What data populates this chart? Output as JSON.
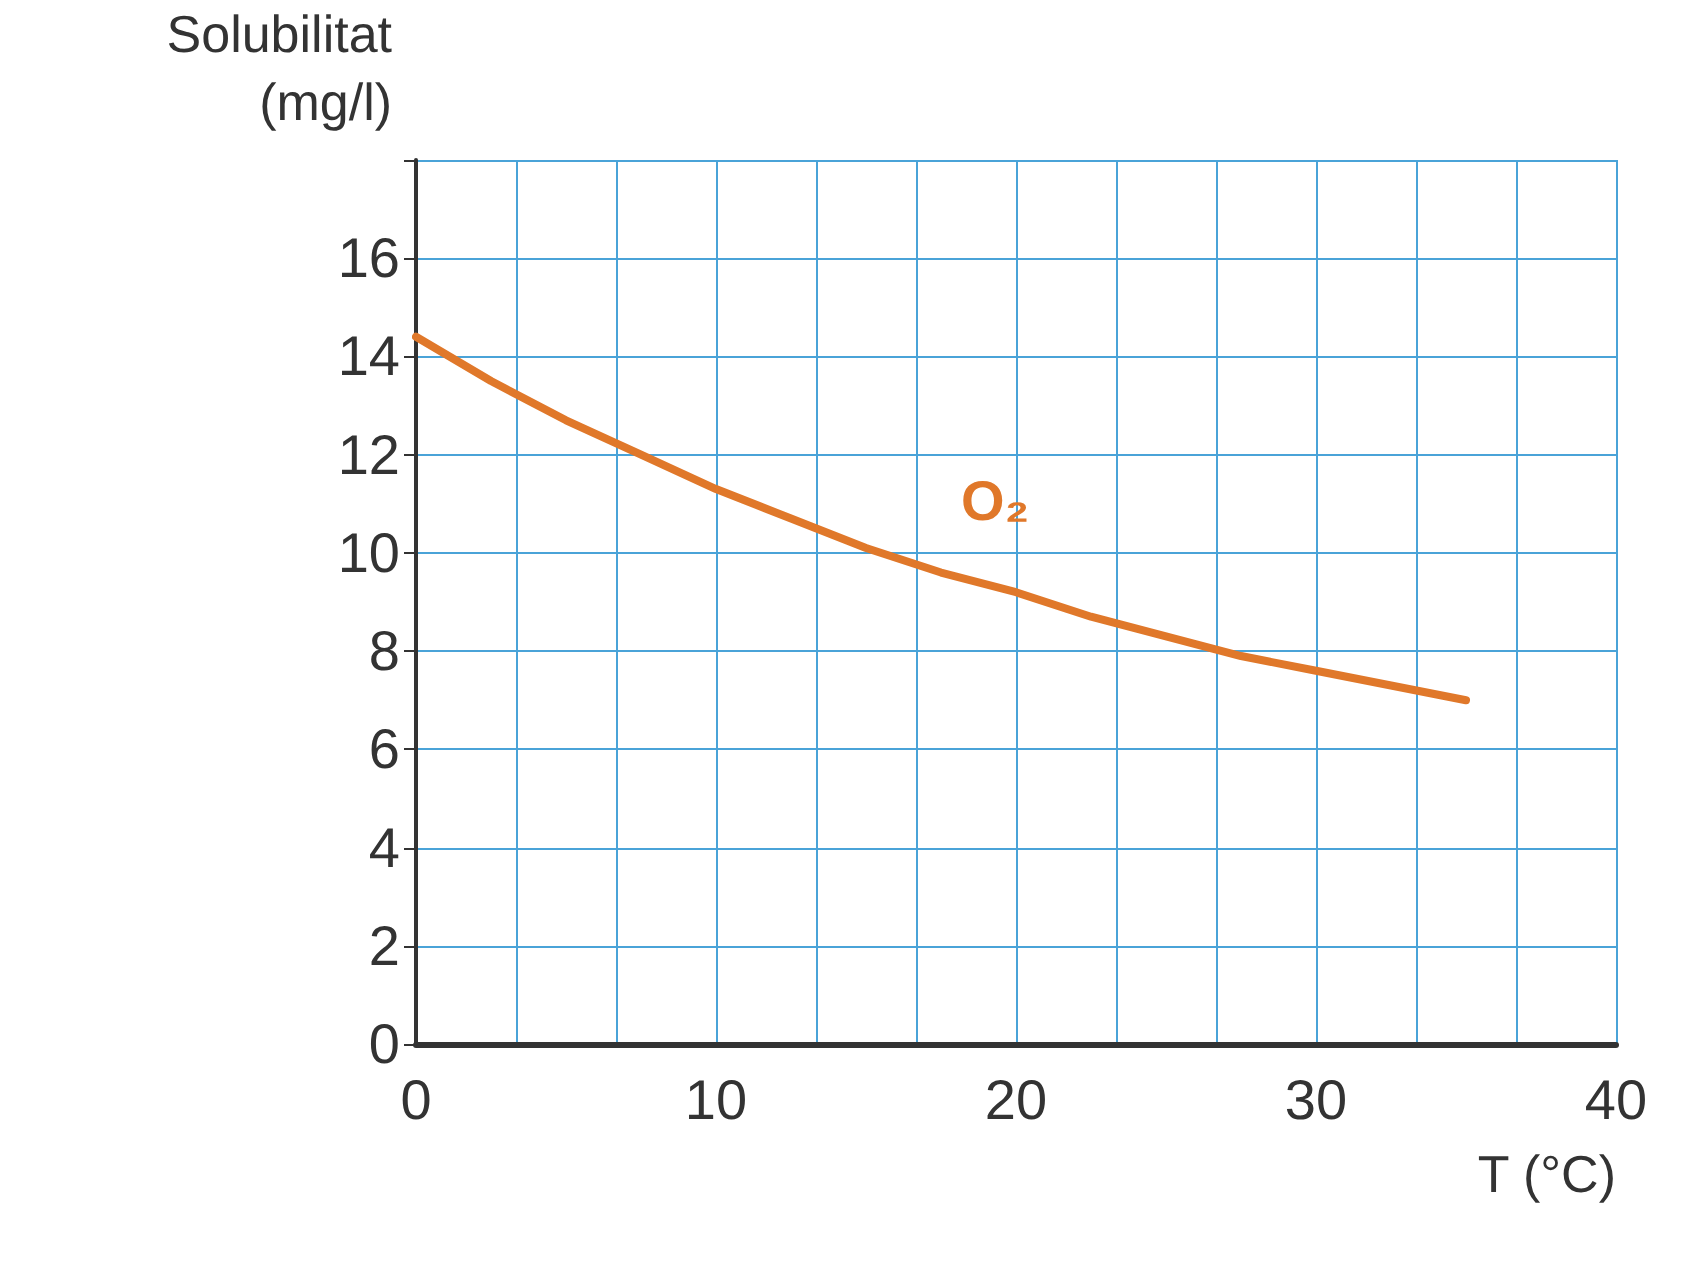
{
  "chart_data": {
    "type": "line",
    "xlabel": "T (°C)",
    "ylabel": "Solubilitat (mg/l)",
    "x": [
      0,
      2.5,
      5,
      7.5,
      10,
      12.5,
      15,
      17.5,
      20,
      22.5,
      25,
      27.5,
      30,
      32.5,
      35
    ],
    "series": [
      {
        "name": "O₂",
        "color": "#e0782a",
        "values": [
          14.4,
          13.5,
          12.7,
          12.0,
          11.3,
          10.7,
          10.1,
          9.6,
          9.2,
          8.7,
          8.3,
          7.9,
          7.6,
          7.3,
          7.0
        ]
      }
    ],
    "xlim": [
      0,
      40
    ],
    "xticks": [
      0,
      10,
      20,
      30,
      40
    ],
    "ylim": [
      0,
      18
    ],
    "yticks": [
      0,
      2,
      4,
      6,
      8,
      10,
      12,
      14,
      16,
      {
        "value": 18,
        "label": null
      }
    ],
    "grid": true,
    "legend": false,
    "marker": "none",
    "line_style": "solid"
  }
}
